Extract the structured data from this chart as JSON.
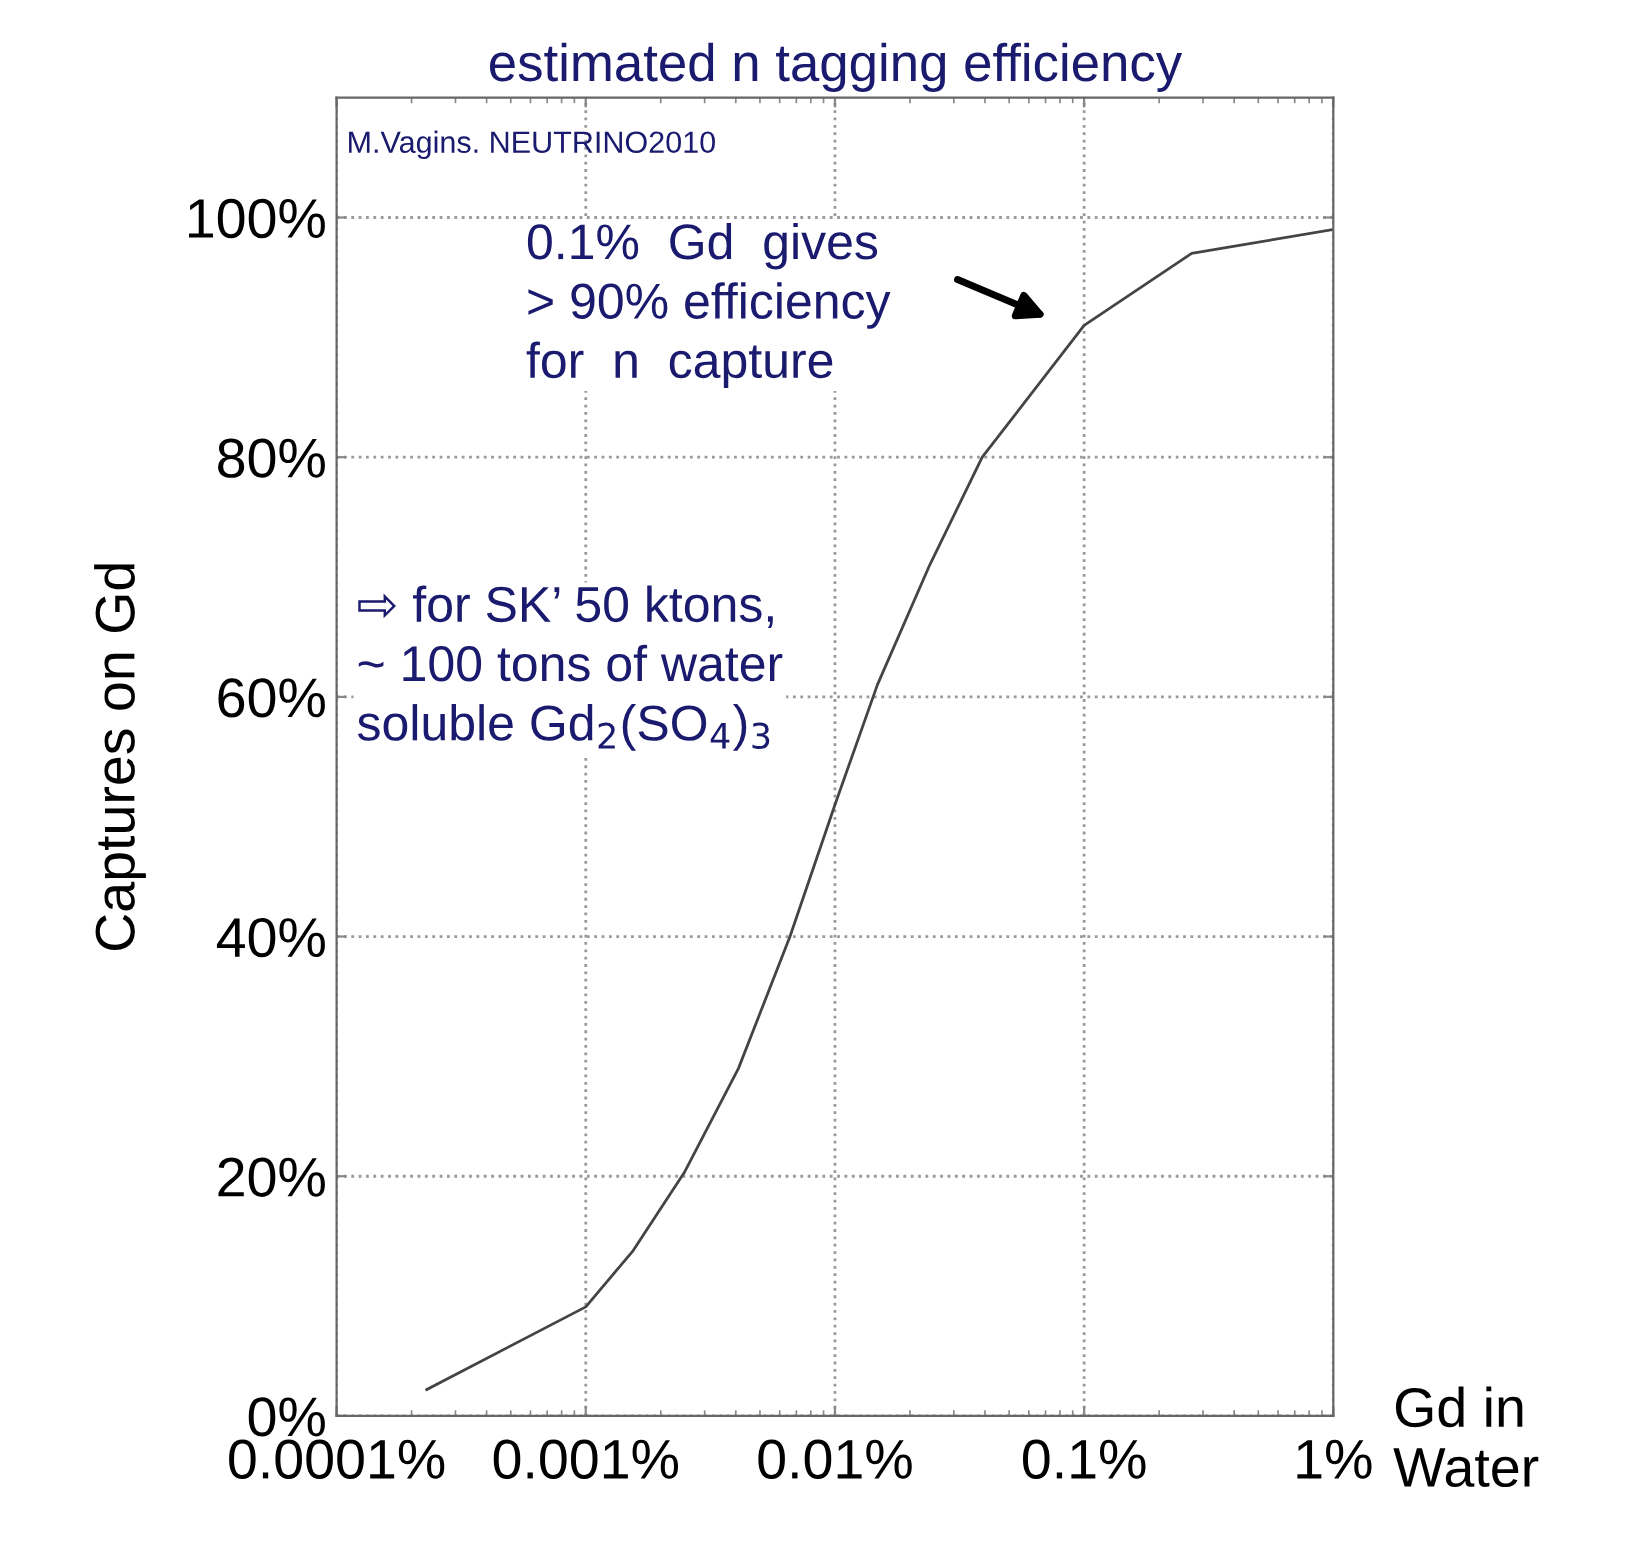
{
  "chart_data": {
    "type": "line",
    "title": "estimated n tagging efficiency",
    "xlabel": "Gd in Water",
    "ylabel": "Captures on Gd",
    "x": [
      0.00023,
      0.001,
      0.00155,
      0.0025,
      0.0041,
      0.0066,
      0.01,
      0.0148,
      0.024,
      0.039,
      0.1,
      0.27,
      1
    ],
    "series": [
      {
        "color": "#444444",
        "values": [
          2.2,
          9.1,
          13.8,
          20.4,
          29,
          40,
          51,
          61,
          71,
          80,
          91,
          97,
          99
        ]
      }
    ],
    "log": "x",
    "xlim": [
      0.0001,
      1
    ],
    "xticks": [
      {
        "value": 0.0001,
        "label": "0.0001%"
      },
      {
        "value": 0.001,
        "label": "0.001%"
      },
      {
        "value": 0.01,
        "label": "0.01%"
      },
      {
        "value": 0.1,
        "label": "0.1%"
      },
      {
        "value": 1,
        "label": "1%"
      }
    ],
    "ylim": [
      0,
      110
    ],
    "yticks": [
      {
        "value": 0,
        "label": "0%"
      },
      {
        "value": 20,
        "label": "20%"
      },
      {
        "value": 40,
        "label": "40%"
      },
      {
        "value": 60,
        "label": "60%"
      },
      {
        "value": 80,
        "label": "80%"
      },
      {
        "value": 100,
        "label": "100%"
      }
    ],
    "grid": true,
    "marker": "none",
    "line_style": "solid",
    "annotations": [
      "M.Vagins. NEUTRINO2010",
      "0.1%  Gd  gives\n> 90% efficiency\nfor  n  capture",
      "⇨ for SK’ 50 ktons,\n~ 100 tons of water\nsoluble Gd$_{2}$(SO$_{4}$)$_{3}$"
    ]
  }
}
